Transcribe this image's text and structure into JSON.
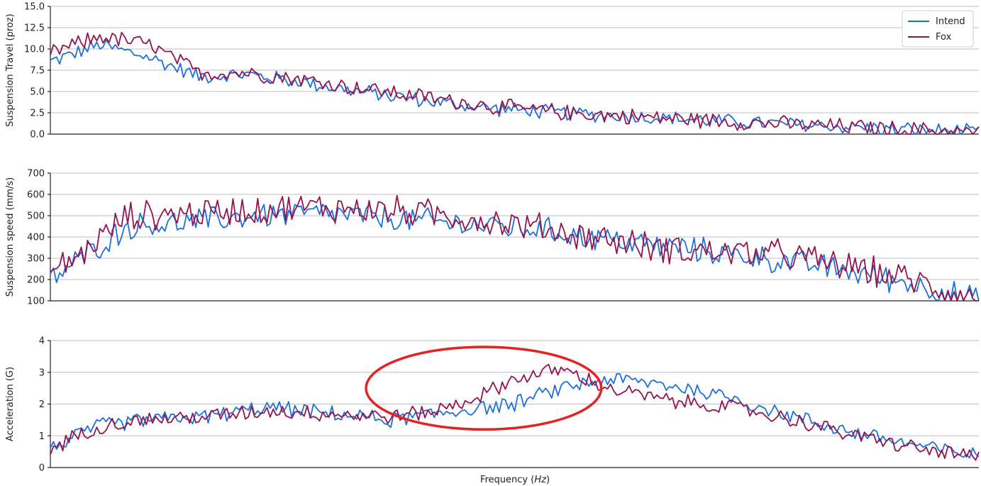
{
  "colors": {
    "intend": "#1f6fd8",
    "fox": "#93144f",
    "highlight": "#e32222",
    "grid": "#bdbdbd"
  },
  "xlabel": "Frequency (Hz)",
  "legend": {
    "placement": "top-right",
    "entries": [
      "Intend",
      "Fox"
    ]
  },
  "chart_data": [
    {
      "type": "line",
      "ylabel": "Suspension Travel (proz)",
      "ylim": [
        0,
        15
      ],
      "yticks": [
        0,
        2.5,
        5,
        7.5,
        10,
        12.5,
        15
      ],
      "ytick_labels": [
        "0.0",
        "2.5",
        "5.0",
        "7.5",
        "10.0",
        "12.5",
        "15.0"
      ],
      "grid": true,
      "x": [
        0,
        20,
        40,
        60,
        80,
        100,
        120,
        140,
        160,
        180,
        200,
        220,
        240,
        260,
        280,
        300
      ],
      "series": [
        {
          "name": "Intend",
          "values": [
            8.5,
            10.5,
            9.0,
            6.8,
            7.0,
            6.2,
            5.2,
            4.4,
            3.6,
            3.0,
            2.6,
            2.3,
            2.0,
            1.7,
            1.4,
            1.1,
            0.9,
            0.6,
            0.4,
            0.2
          ],
          "x": [
            0,
            16,
            32,
            48,
            64,
            80,
            96,
            112,
            128,
            144,
            160,
            176,
            192,
            208,
            224,
            240,
            256,
            272,
            288,
            300
          ],
          "noise": 1.0
        },
        {
          "name": "Fox",
          "values": [
            9.5,
            11.5,
            10.5,
            7.2,
            7.2,
            6.5,
            5.6,
            4.8,
            4.0,
            3.2,
            2.7,
            2.3,
            2.0,
            1.7,
            1.4,
            1.1,
            0.9,
            0.6,
            0.4,
            0.2
          ],
          "x": [
            0,
            16,
            32,
            48,
            64,
            80,
            96,
            112,
            128,
            144,
            160,
            176,
            192,
            208,
            224,
            240,
            256,
            272,
            288,
            300
          ],
          "noise": 1.1
        }
      ]
    },
    {
      "type": "line",
      "ylabel": "Suspension speed (mm/s)",
      "ylim": [
        100,
        700
      ],
      "yticks": [
        100,
        200,
        300,
        400,
        500,
        600,
        700
      ],
      "ytick_labels": [
        "100",
        "200",
        "300",
        "400",
        "500",
        "600",
        "700"
      ],
      "grid": true,
      "series": [
        {
          "name": "Intend",
          "values": [
            200,
            300,
            450,
            470,
            500,
            510,
            480,
            460,
            440,
            400,
            360,
            330,
            290,
            250,
            190,
            140,
            100
          ],
          "x": [
            0,
            10,
            25,
            45,
            65,
            90,
            115,
            135,
            155,
            175,
            195,
            215,
            235,
            255,
            275,
            290,
            300
          ],
          "noise": 70
        },
        {
          "name": "Fox",
          "values": [
            230,
            320,
            500,
            510,
            530,
            540,
            520,
            490,
            450,
            400,
            350,
            330,
            320,
            270,
            210,
            150,
            100
          ],
          "x": [
            0,
            10,
            25,
            45,
            65,
            90,
            115,
            135,
            155,
            175,
            195,
            215,
            235,
            255,
            275,
            290,
            300
          ],
          "noise": 80
        }
      ]
    },
    {
      "type": "line",
      "ylabel": "Acceleration (G)",
      "ylim": [
        0,
        4
      ],
      "yticks": [
        0,
        1,
        2,
        3,
        4
      ],
      "ytick_labels": [
        "0",
        "1",
        "2",
        "3",
        "4"
      ],
      "grid": true,
      "series": [
        {
          "name": "Intend",
          "values": [
            0.6,
            1.3,
            1.5,
            1.6,
            1.9,
            1.7,
            1.5,
            1.7,
            1.9,
            2.0,
            2.5,
            2.8,
            2.6,
            2.2,
            1.6,
            1.1,
            0.7,
            0.35
          ],
          "x": [
            0,
            15,
            30,
            50,
            70,
            90,
            110,
            125,
            140,
            150,
            165,
            180,
            200,
            220,
            240,
            260,
            280,
            300
          ],
          "noise": 0.28
        },
        {
          "name": "Fox",
          "values": [
            0.6,
            1.3,
            1.5,
            1.6,
            1.8,
            1.7,
            1.6,
            1.8,
            2.3,
            2.8,
            3.1,
            2.5,
            2.1,
            1.9,
            1.5,
            1.0,
            0.6,
            0.3
          ],
          "x": [
            0,
            15,
            30,
            50,
            70,
            90,
            110,
            125,
            140,
            150,
            165,
            180,
            200,
            220,
            240,
            260,
            280,
            300
          ],
          "noise": 0.28
        }
      ],
      "annotation": {
        "type": "ellipse",
        "cx": 140,
        "cy": 2.5,
        "rx": 38,
        "ry": 1.3
      }
    }
  ]
}
